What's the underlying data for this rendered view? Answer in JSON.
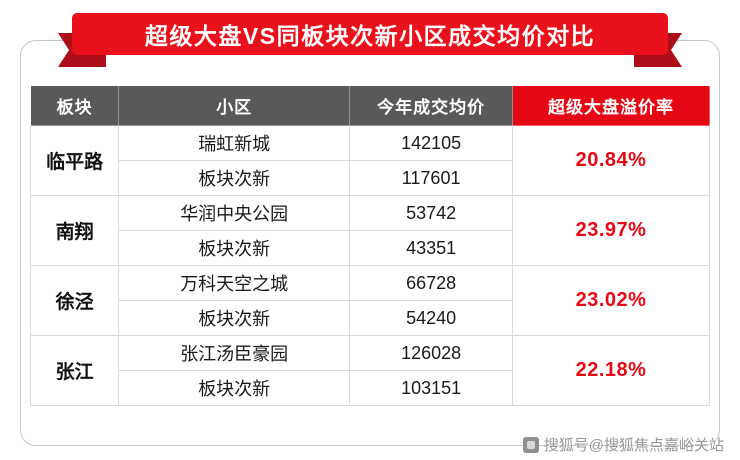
{
  "banner": {
    "title": "超级大盘VS同板块次新小区成交均价对比"
  },
  "table": {
    "headers": [
      "板块",
      "小区",
      "今年成交均价",
      "超级大盘溢价率"
    ],
    "groups": [
      {
        "block": "临平路",
        "premium": "20.84%",
        "rows": [
          {
            "community": "瑞虹新城",
            "price": "142105"
          },
          {
            "community": "板块次新",
            "price": "117601"
          }
        ]
      },
      {
        "block": "南翔",
        "premium": "23.97%",
        "rows": [
          {
            "community": "华润中央公园",
            "price": "53742"
          },
          {
            "community": "板块次新",
            "price": "43351"
          }
        ]
      },
      {
        "block": "徐泾",
        "premium": "23.02%",
        "rows": [
          {
            "community": "万科天空之城",
            "price": "66728"
          },
          {
            "community": "板块次新",
            "price": "54240"
          }
        ]
      },
      {
        "block": "张江",
        "premium": "22.18%",
        "rows": [
          {
            "community": "张江汤臣豪园",
            "price": "126028"
          },
          {
            "community": "板块次新",
            "price": "103151"
          }
        ]
      }
    ]
  },
  "watermark": {
    "text": "搜狐号@搜狐焦点嘉峪关站"
  },
  "colors": {
    "accent_red": "#e60714",
    "ribbon_red": "#e8111c",
    "ribbon_fold_red": "#ad0f18",
    "header_gray": "#58595b",
    "grid_gray": "#d9d9d9",
    "watermark_gray": "#979797"
  },
  "chart_data": {
    "type": "table",
    "title": "超级大盘VS同板块次新小区成交均价对比",
    "columns": [
      "板块",
      "小区",
      "今年成交均价",
      "超级大盘溢价率"
    ],
    "rows": [
      [
        "临平路",
        "瑞虹新城",
        142105,
        "20.84%"
      ],
      [
        "临平路",
        "板块次新",
        117601,
        "20.84%"
      ],
      [
        "南翔",
        "华润中央公园",
        53742,
        "23.97%"
      ],
      [
        "南翔",
        "板块次新",
        43351,
        "23.97%"
      ],
      [
        "徐泾",
        "万科天空之城",
        66728,
        "23.02%"
      ],
      [
        "徐泾",
        "板块次新",
        54240,
        "23.02%"
      ],
      [
        "张江",
        "张江汤臣豪园",
        126028,
        "22.18%"
      ],
      [
        "张江",
        "板块次新",
        103151,
        "22.18%"
      ]
    ]
  }
}
